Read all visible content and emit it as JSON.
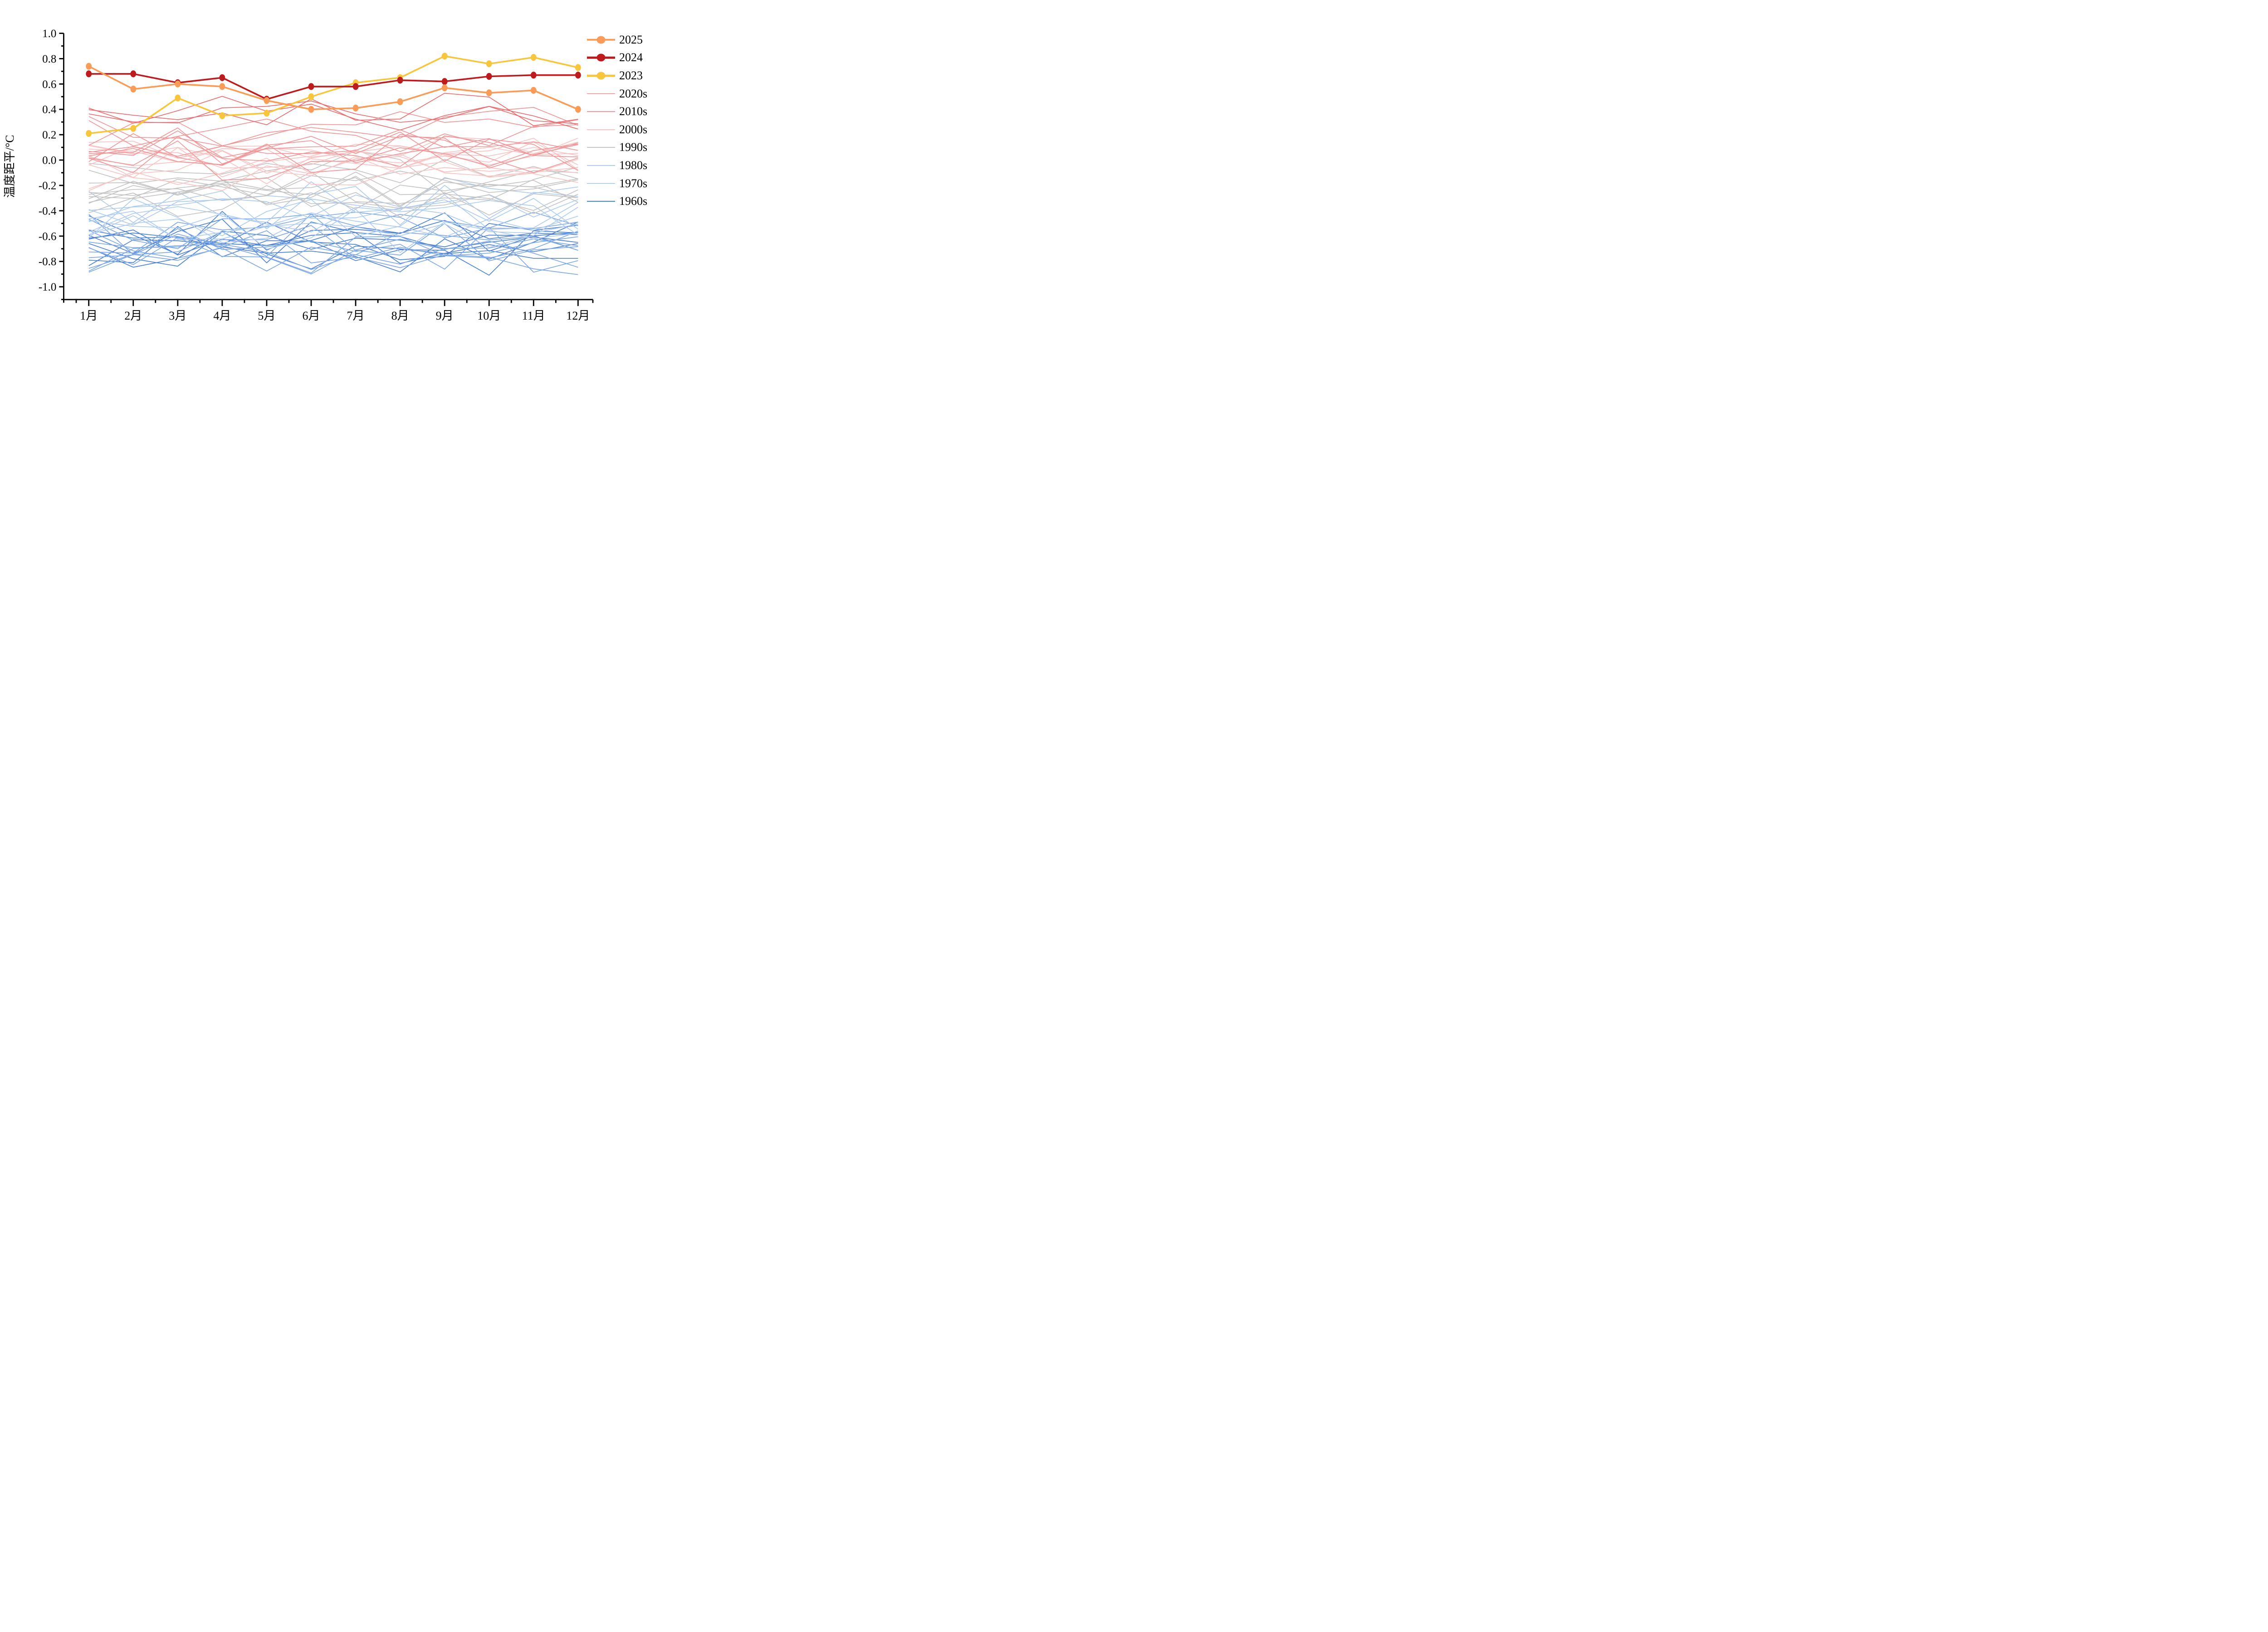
{
  "figure": {
    "background": "#ffffff",
    "kind": "monthly temperature anomaly line chart"
  },
  "y_axis": {
    "title": "温度距平/°C",
    "tick_labels": [
      "1.0",
      "0.8",
      "0.6",
      "0.4",
      "0.2",
      "0.0",
      "-0.2",
      "-0.4",
      "-0.6",
      "-0.8",
      "-1.0"
    ],
    "range_min": -1.1,
    "range_max": 1.0,
    "major_step": 0.2,
    "minor_step": 0.1
  },
  "x_axis": {
    "tick_labels": [
      "1月",
      "2月",
      "3月",
      "4月",
      "5月",
      "6月",
      "7月",
      "8月",
      "9月",
      "10月",
      "11月",
      "12月"
    ]
  },
  "legend": {
    "items": [
      {
        "label": "2025",
        "color": "#F89C58",
        "marker": true
      },
      {
        "label": "2024",
        "color": "#BE1B1E",
        "marker": true
      },
      {
        "label": "2023",
        "color": "#F7C63D",
        "marker": true
      },
      {
        "label": "2020s",
        "color": "#EA6E70",
        "marker": false
      },
      {
        "label": "2010s",
        "color": "#F09698",
        "marker": false
      },
      {
        "label": "2000s",
        "color": "#F8C4C3",
        "marker": false
      },
      {
        "label": "1990s",
        "color": "#C4C4C4",
        "marker": false
      },
      {
        "label": "1980s",
        "color": "#AECBF0",
        "marker": false
      },
      {
        "label": "1970s",
        "color": "#7FA9E6",
        "marker": false
      },
      {
        "label": "1960s",
        "color": "#4C82D6",
        "marker": false
      }
    ]
  },
  "chart_data": {
    "type": "line",
    "title": "",
    "xlabel": "",
    "ylabel": "温度距平/°C",
    "ylim": [
      -1.1,
      1.0
    ],
    "grid": false,
    "legend_position": "outside-right",
    "categories": [
      "1月",
      "2月",
      "3月",
      "4月",
      "5月",
      "6月",
      "7月",
      "8月",
      "9月",
      "10月",
      "11月",
      "12月"
    ],
    "series": [
      {
        "name": "2025",
        "color": "#F89C58",
        "marker": true,
        "width": 3.6,
        "values": [
          0.74,
          0.56,
          0.6,
          0.58,
          0.47,
          0.4,
          0.41,
          0.46,
          0.57,
          0.53,
          0.55,
          0.4
        ]
      },
      {
        "name": "2024",
        "color": "#BE1B1E",
        "marker": true,
        "width": 3.6,
        "values": [
          0.68,
          0.68,
          0.61,
          0.65,
          0.48,
          0.58,
          0.58,
          0.63,
          0.62,
          0.66,
          0.67,
          0.67
        ]
      },
      {
        "name": "2023",
        "color": "#F7C63D",
        "marker": true,
        "width": 3.6,
        "values": [
          0.21,
          0.25,
          0.49,
          0.35,
          0.37,
          0.5,
          0.61,
          0.65,
          0.82,
          0.76,
          0.81,
          0.73
        ]
      }
    ],
    "background_groups": [
      {
        "name": "2020s",
        "color": "#EA6E70",
        "count": 3,
        "mean": 0.32,
        "line_spread": 0.1,
        "noise": 0.1,
        "min": -0.35,
        "max": 0.58
      },
      {
        "name": "2010s",
        "color": "#F09698",
        "count": 10,
        "mean": 0.13,
        "line_spread": 0.13,
        "noise": 0.1,
        "min": -0.33,
        "max": 0.55
      },
      {
        "name": "2000s",
        "color": "#F8C4C3",
        "count": 10,
        "mean": 0.0,
        "line_spread": 0.12,
        "noise": 0.1,
        "min": -0.37,
        "max": 0.32
      },
      {
        "name": "1990s",
        "color": "#C4C4C4",
        "count": 10,
        "mean": -0.2,
        "line_spread": 0.12,
        "noise": 0.1,
        "min": -0.52,
        "max": 0.12
      },
      {
        "name": "1980s",
        "color": "#AECBF0",
        "count": 10,
        "mean": -0.45,
        "line_spread": 0.13,
        "noise": 0.12,
        "min": -0.93,
        "max": -0.08
      },
      {
        "name": "1970s",
        "color": "#7FA9E6",
        "count": 10,
        "mean": -0.6,
        "line_spread": 0.13,
        "noise": 0.12,
        "min": -0.95,
        "max": -0.25
      },
      {
        "name": "1960s",
        "color": "#4C82D6",
        "count": 9,
        "mean": -0.66,
        "line_spread": 0.12,
        "noise": 0.12,
        "min": -0.96,
        "max": -0.3
      }
    ],
    "seed": 11
  }
}
